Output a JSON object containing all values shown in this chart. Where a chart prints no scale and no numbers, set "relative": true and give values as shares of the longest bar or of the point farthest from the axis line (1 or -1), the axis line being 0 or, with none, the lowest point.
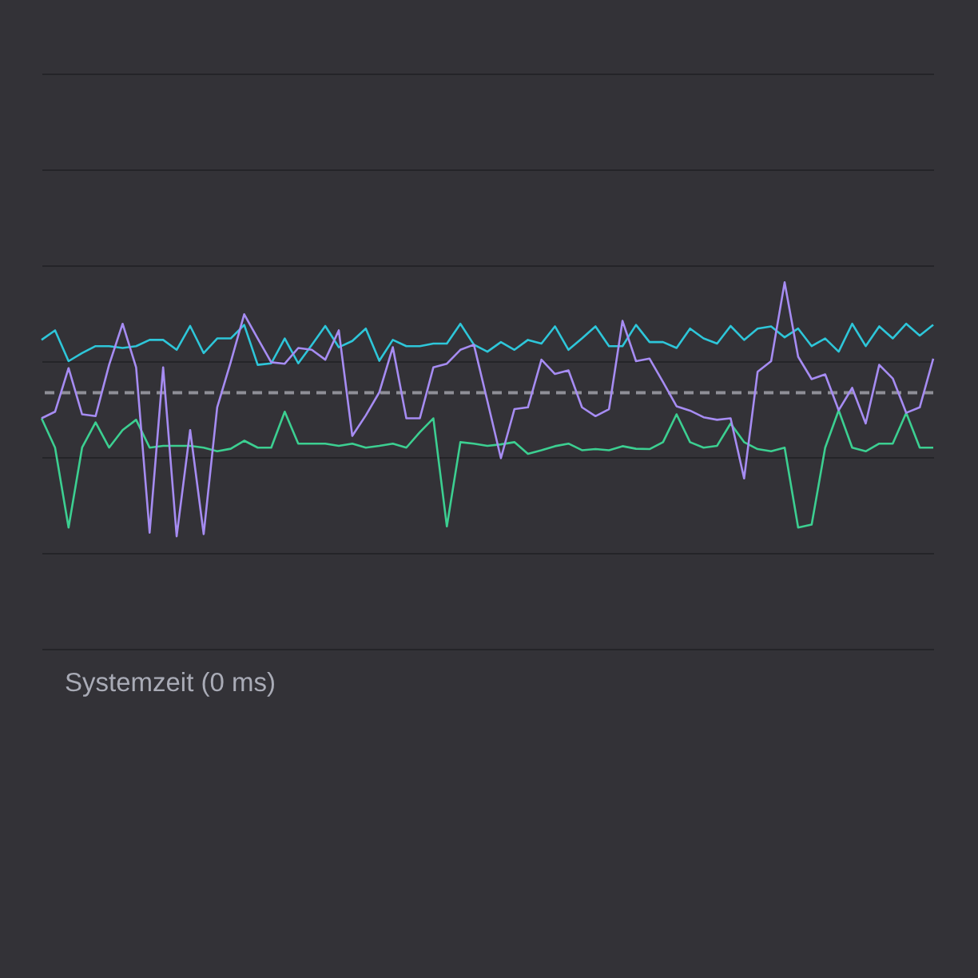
{
  "chart_data": {
    "type": "line",
    "xlabel": "Systemzeit (0 ms)",
    "relative": true,
    "categories": [
      null,
      null,
      null,
      null,
      null,
      null,
      null,
      null,
      null,
      null,
      null,
      null,
      null,
      null,
      null,
      null,
      null,
      null,
      null,
      null,
      null,
      null,
      null,
      null,
      null,
      null,
      null,
      null,
      null,
      null,
      null,
      null,
      null,
      null,
      null,
      null,
      null,
      null,
      null,
      null,
      null,
      null,
      null,
      null,
      null,
      null,
      null,
      null,
      null,
      null,
      null,
      null,
      null,
      null,
      null,
      null,
      null,
      null,
      null,
      null,
      null,
      null,
      null,
      null,
      null,
      null,
      null
    ],
    "series": [
      {
        "color": "#3ccf91",
        "values": [
          0.629,
          0.549,
          0.331,
          0.549,
          0.618,
          0.549,
          0.597,
          0.625,
          0.549,
          0.554,
          0.554,
          0.554,
          0.549,
          0.539,
          0.546,
          0.568,
          0.549,
          0.549,
          0.647,
          0.56,
          0.56,
          0.56,
          0.554,
          0.56,
          0.549,
          0.554,
          0.56,
          0.549,
          0.591,
          0.629,
          0.334,
          0.564,
          0.56,
          0.554,
          0.558,
          0.564,
          0.532,
          0.542,
          0.553,
          0.56,
          0.542,
          0.545,
          0.542,
          0.553,
          0.546,
          0.545,
          0.564,
          0.64,
          0.564,
          0.549,
          0.554,
          0.615,
          0.564,
          0.545,
          0.539,
          0.549,
          0.331,
          0.339,
          0.549,
          0.651,
          0.549,
          0.539,
          0.56,
          0.56,
          0.644,
          0.549,
          0.549
        ]
      },
      {
        "color": "#2ec6d9",
        "values": [
          0.843,
          0.869,
          0.785,
          0.807,
          0.826,
          0.826,
          0.821,
          0.826,
          0.843,
          0.843,
          0.816,
          0.881,
          0.807,
          0.847,
          0.847,
          0.884,
          0.775,
          0.779,
          0.847,
          0.779,
          0.829,
          0.881,
          0.823,
          0.84,
          0.874,
          0.786,
          0.843,
          0.826,
          0.826,
          0.833,
          0.833,
          0.887,
          0.83,
          0.811,
          0.837,
          0.816,
          0.843,
          0.833,
          0.88,
          0.816,
          0.847,
          0.88,
          0.826,
          0.826,
          0.884,
          0.837,
          0.837,
          0.821,
          0.874,
          0.847,
          0.833,
          0.881,
          0.843,
          0.874,
          0.88,
          0.85,
          0.874,
          0.826,
          0.847,
          0.811,
          0.887,
          0.826,
          0.88,
          0.847,
          0.887,
          0.855,
          0.884
        ]
      },
      {
        "color": "#a68cf2",
        "values": [
          0.629,
          0.647,
          0.766,
          0.64,
          0.635,
          0.775,
          0.887,
          0.768,
          0.317,
          0.768,
          0.307,
          0.597,
          0.313,
          0.659,
          0.782,
          0.913,
          0.847,
          0.782,
          0.778,
          0.821,
          0.816,
          0.789,
          0.869,
          0.581,
          0.637,
          0.7,
          0.823,
          0.629,
          0.629,
          0.768,
          0.778,
          0.816,
          0.83,
          0.676,
          0.52,
          0.654,
          0.659,
          0.789,
          0.75,
          0.76,
          0.659,
          0.635,
          0.654,
          0.895,
          0.785,
          0.792,
          0.728,
          0.662,
          0.65,
          0.632,
          0.625,
          0.629,
          0.465,
          0.756,
          0.785,
          1,
          0.797,
          0.736,
          0.749,
          0.651,
          0.712,
          0.615,
          0.775,
          0.738,
          0.644,
          0.659,
          0.792
        ]
      }
    ],
    "ref_lines": [
      {
        "axis": "y",
        "value": 0.699,
        "color": "#8f8f97",
        "line_style": "dashed"
      }
    ],
    "grid": "y",
    "line_style": "solid"
  }
}
